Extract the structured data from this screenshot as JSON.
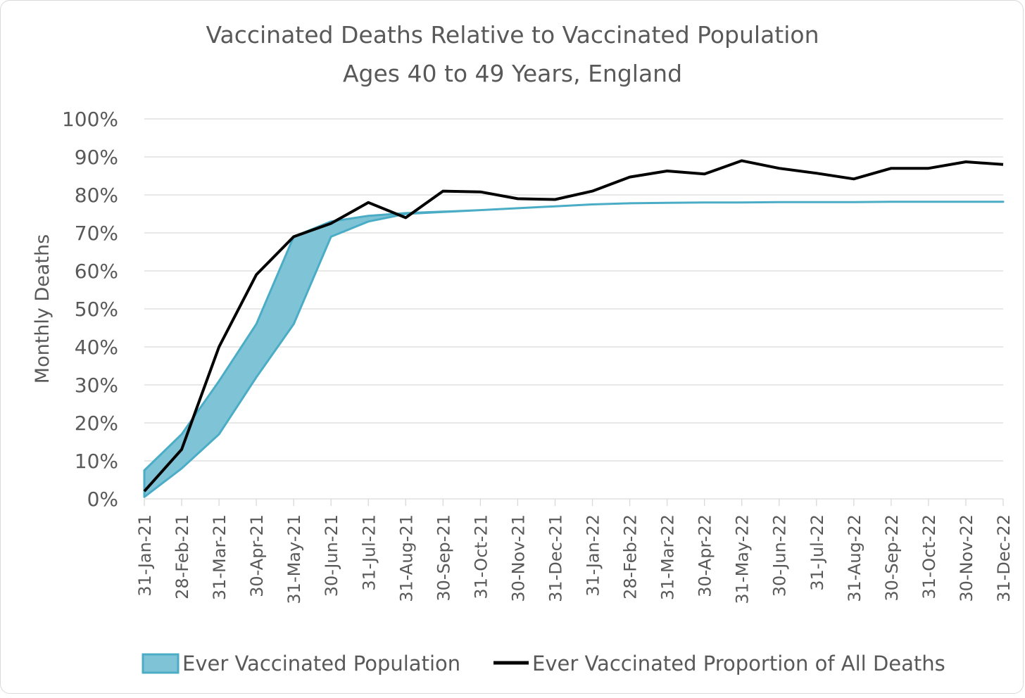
{
  "chart_data": {
    "type": "area",
    "title": "Vaccinated Deaths Relative to Vaccinated Population",
    "subtitle": "Ages 40 to 49 Years, England",
    "ylabel": "Monthly Deaths",
    "xlabel": "",
    "ylim": [
      0,
      100
    ],
    "y_ticks": [
      "0%",
      "10%",
      "20%",
      "30%",
      "40%",
      "50%",
      "60%",
      "70%",
      "80%",
      "90%",
      "100%"
    ],
    "categories": [
      "31-Jan-21",
      "28-Feb-21",
      "31-Mar-21",
      "30-Apr-21",
      "31-May-21",
      "30-Jun-21",
      "31-Jul-21",
      "31-Aug-21",
      "30-Sep-21",
      "31-Oct-21",
      "30-Nov-21",
      "31-Dec-21",
      "31-Jan-22",
      "28-Feb-22",
      "31-Mar-22",
      "30-Apr-22",
      "31-May-22",
      "30-Jun-22",
      "31-Jul-22",
      "31-Aug-22",
      "30-Sep-22",
      "31-Oct-22",
      "30-Nov-22",
      "31-Dec-22"
    ],
    "grid": true,
    "legend_position": "bottom",
    "series": [
      {
        "name": "Ever Vaccinated Population",
        "kind": "band",
        "color": "#4bacc6",
        "fill": "#7fc4d6",
        "upper": [
          7.5,
          17,
          31,
          46,
          69,
          73,
          74.5,
          75.2,
          75.6,
          76,
          76.5,
          77,
          77.5,
          77.8,
          77.9,
          78,
          78,
          78.1,
          78.1,
          78.1,
          78.2,
          78.2,
          78.2,
          78.2
        ],
        "lower": [
          0.5,
          8,
          17,
          32,
          46,
          69,
          73,
          75,
          75.5,
          76,
          76.5,
          77,
          77.5,
          77.8,
          77.9,
          78,
          78,
          78.1,
          78.1,
          78.1,
          78.2,
          78.2,
          78.2,
          78.2
        ]
      },
      {
        "name": "Ever Vaccinated Proportion of All Deaths",
        "kind": "line",
        "color": "#000000",
        "values": [
          2,
          13,
          40,
          59,
          69,
          72.5,
          78,
          74,
          81,
          80.8,
          79,
          78.8,
          81,
          84.7,
          86.3,
          85.5,
          89,
          87,
          85.7,
          84.2,
          87,
          87,
          88.7,
          88
        ]
      }
    ]
  }
}
